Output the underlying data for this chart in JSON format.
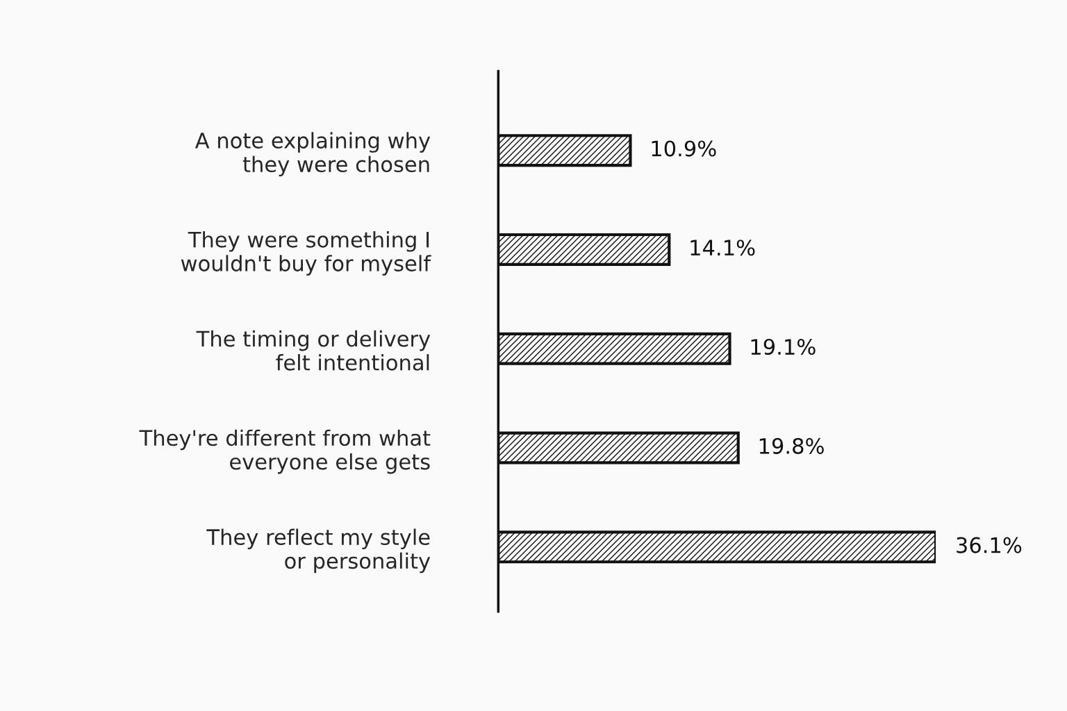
{
  "chart_data": {
    "type": "bar",
    "orientation": "horizontal",
    "categories": [
      "A note explaining why\nthey were chosen",
      "They were something I\nwouldn't buy for myself",
      "The timing or delivery\nfelt intentional",
      "They're different from what\neveryone else gets",
      "They reflect my style\nor personality"
    ],
    "values": [
      10.9,
      14.1,
      19.1,
      19.8,
      36.1
    ],
    "value_labels": [
      "10.9%",
      "14.1%",
      "19.1%",
      "19.8%",
      "36.1%"
    ],
    "color": "#111111"
  }
}
